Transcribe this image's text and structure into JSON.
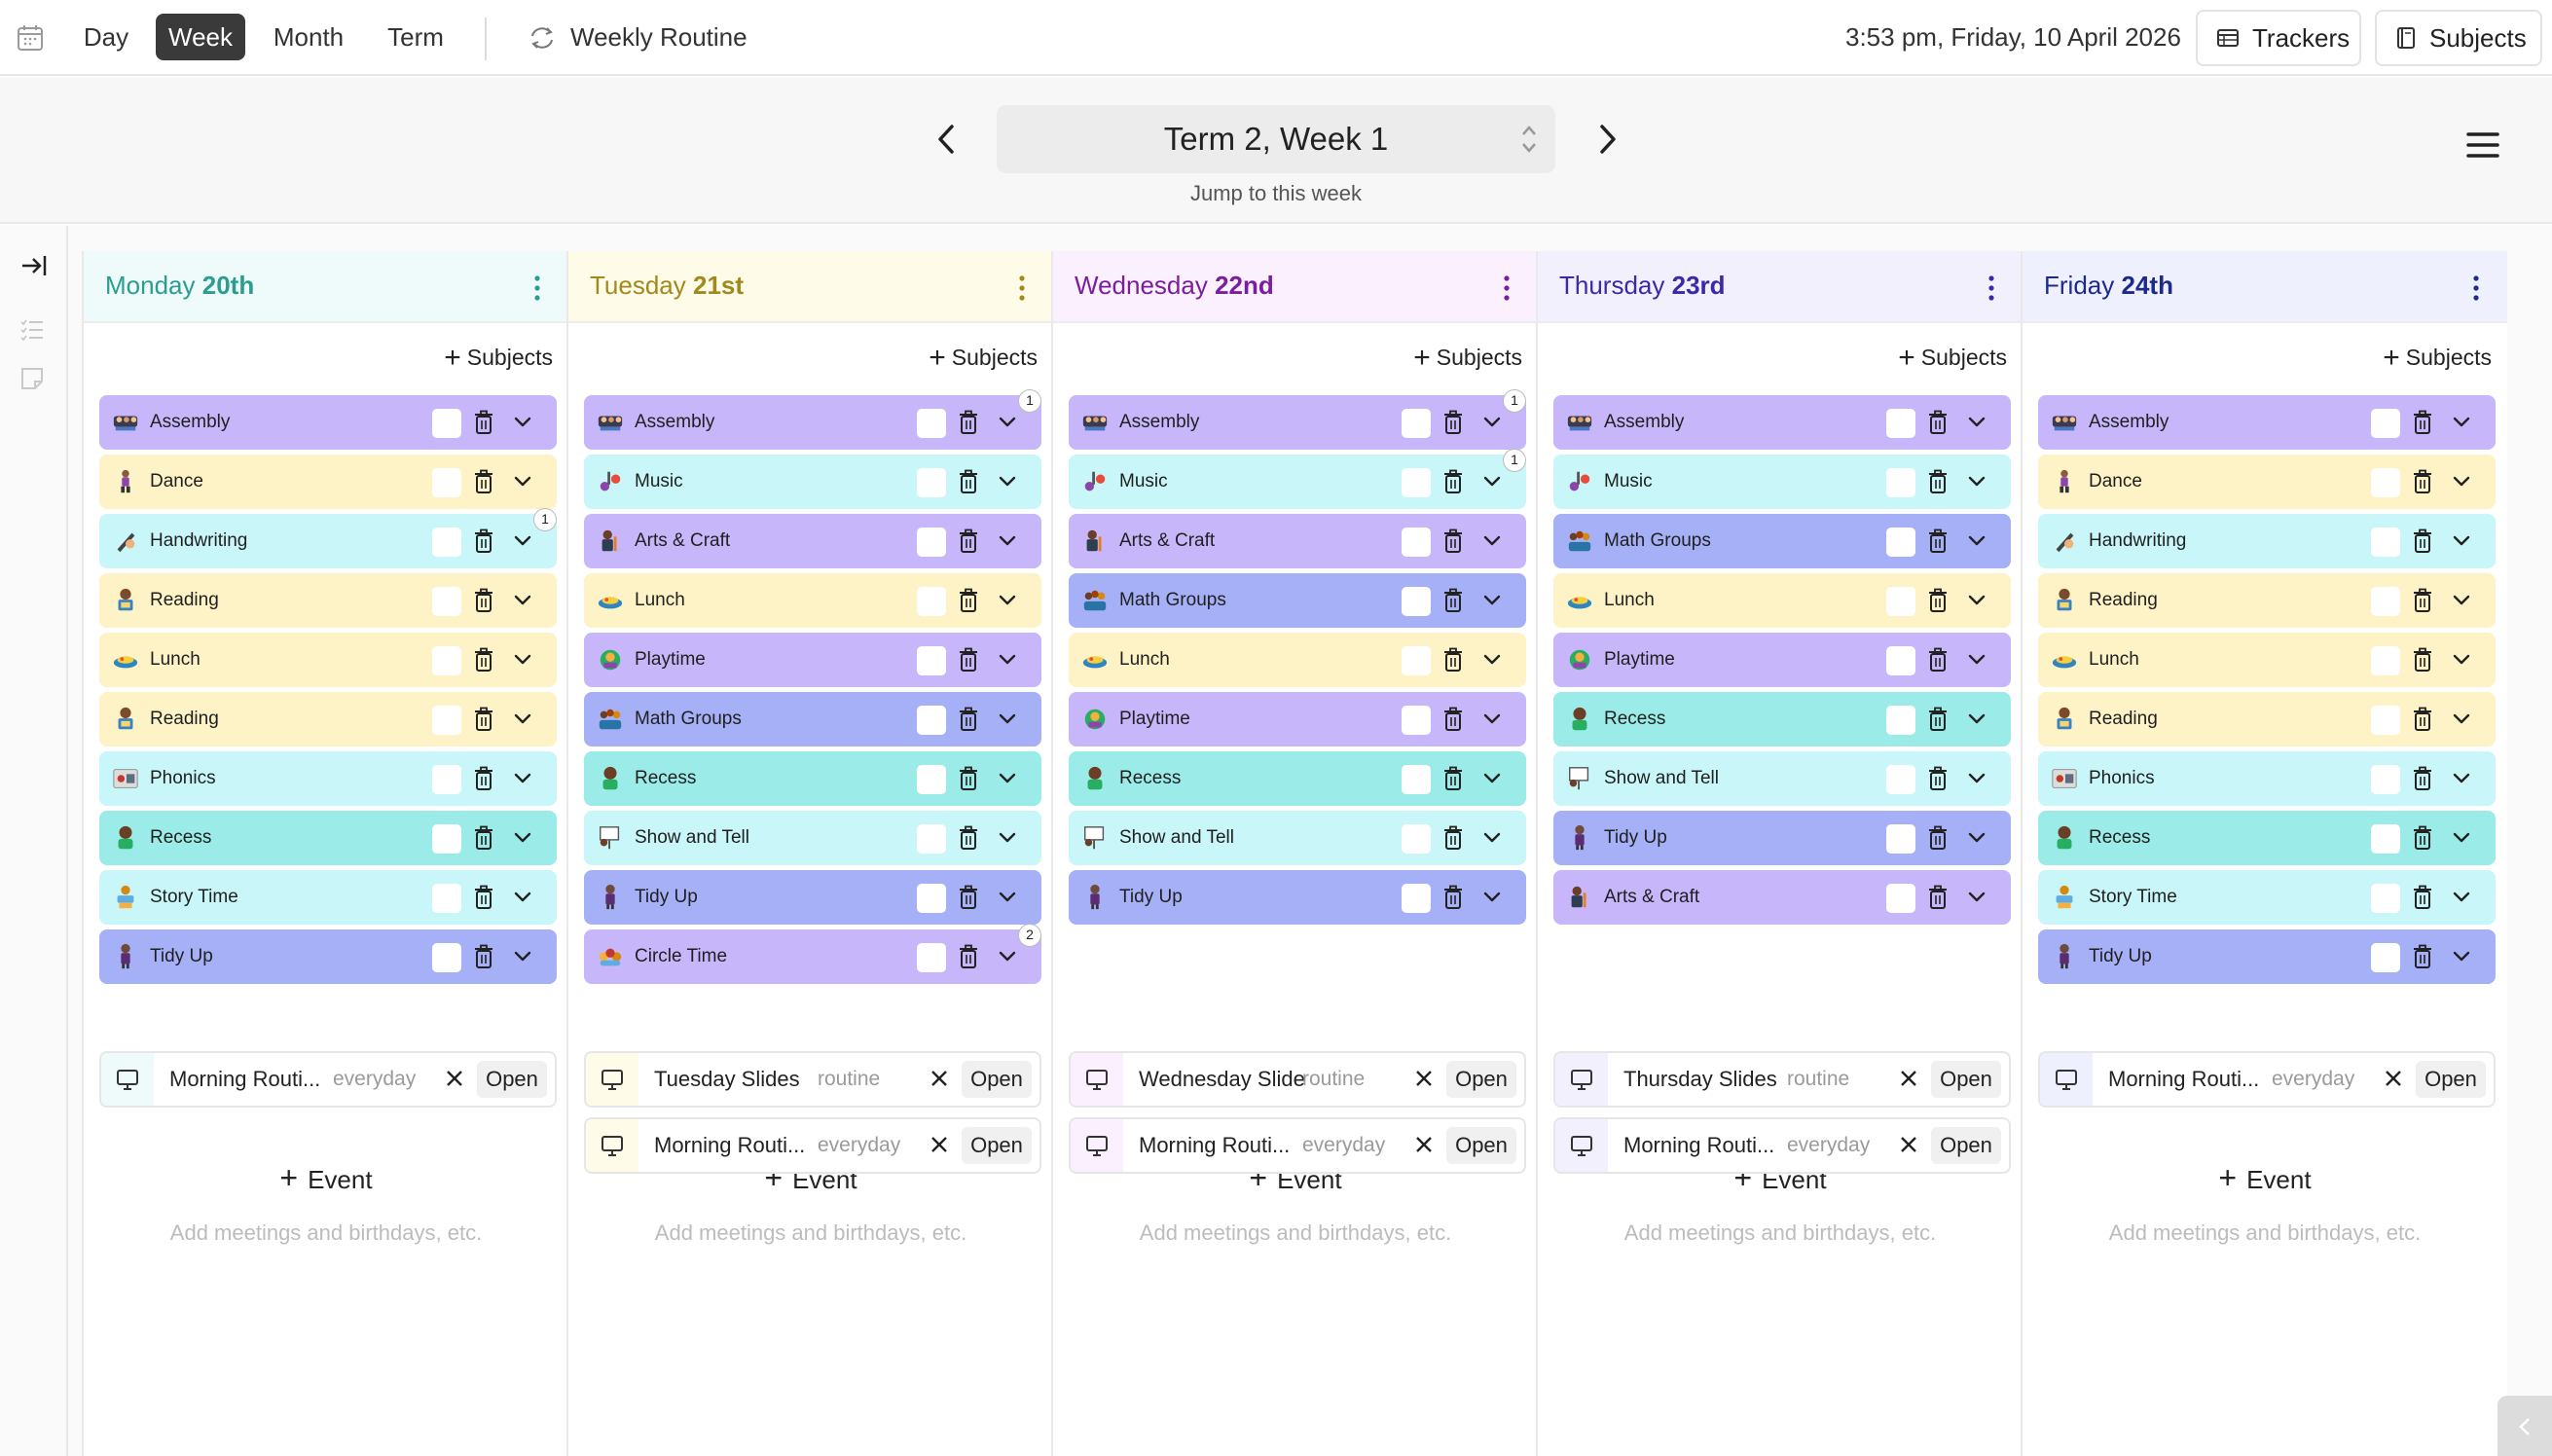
{
  "topbar": {
    "views": [
      "Day",
      "Week",
      "Month",
      "Term"
    ],
    "active_view": "Week",
    "routine_label": "Weekly Routine",
    "datetime": "3:53 pm, Friday, 10 April 2026",
    "trackers_label": "Trackers",
    "subjects_label": "Subjects"
  },
  "weeknav": {
    "title": "Term 2, Week 1",
    "jump_label": "Jump to this week"
  },
  "colors": {
    "purple": "#c8b6fb",
    "yellow": "#fdf3c6",
    "cyan": "#c9f6f8",
    "teal": "#9bece9",
    "indigo": "#a6b0f7",
    "mon": "#2a9d8f",
    "tue": "#a08a1e",
    "wed": "#7b1e9e",
    "thu": "#3a2aa8",
    "fri": "#1e2a8a"
  },
  "days": [
    {
      "weekday": "Monday",
      "date": "20th",
      "add_subjects": "Subjects",
      "subjects": [
        {
          "name": "Assembly",
          "color": "purple",
          "icon": "assembly-icon"
        },
        {
          "name": "Dance",
          "color": "yellow",
          "icon": "dance-icon"
        },
        {
          "name": "Handwriting",
          "color": "cyan",
          "icon": "handwriting-icon",
          "badge": "1"
        },
        {
          "name": "Reading",
          "color": "yellow",
          "icon": "reading-icon"
        },
        {
          "name": "Lunch",
          "color": "yellow",
          "icon": "lunch-icon"
        },
        {
          "name": "Reading",
          "color": "yellow",
          "icon": "reading-icon"
        },
        {
          "name": "Phonics",
          "color": "cyan",
          "icon": "phonics-icon"
        },
        {
          "name": "Recess",
          "color": "teal",
          "icon": "recess-icon"
        },
        {
          "name": "Story Time",
          "color": "cyan",
          "icon": "story-time-icon"
        },
        {
          "name": "Tidy Up",
          "color": "indigo",
          "icon": "tidy-up-icon"
        }
      ],
      "event_label": "Event",
      "event_hint": "Add meetings and birthdays, etc.",
      "slides": [
        {
          "name": "Morning Routi...",
          "tag": "everyday",
          "open": "Open"
        }
      ]
    },
    {
      "weekday": "Tuesday",
      "date": "21st",
      "add_subjects": "Subjects",
      "subjects": [
        {
          "name": "Assembly",
          "color": "purple",
          "icon": "assembly-icon",
          "badge": "1"
        },
        {
          "name": "Music",
          "color": "cyan",
          "icon": "music-icon"
        },
        {
          "name": "Arts & Craft",
          "color": "purple",
          "icon": "arts-craft-icon"
        },
        {
          "name": "Lunch",
          "color": "yellow",
          "icon": "lunch-icon"
        },
        {
          "name": "Playtime",
          "color": "purple",
          "icon": "playtime-icon"
        },
        {
          "name": "Math Groups",
          "color": "indigo",
          "icon": "math-groups-icon"
        },
        {
          "name": "Recess",
          "color": "teal",
          "icon": "recess-icon"
        },
        {
          "name": "Show and Tell",
          "color": "cyan",
          "icon": "show-and-tell-icon"
        },
        {
          "name": "Tidy Up",
          "color": "indigo",
          "icon": "tidy-up-icon"
        },
        {
          "name": "Circle Time",
          "color": "purple",
          "icon": "circle-time-icon",
          "badge": "2"
        }
      ],
      "event_label": "Event",
      "event_hint": "Add meetings and birthdays, etc.",
      "slides": [
        {
          "name": "Tuesday Slides",
          "tag": "routine",
          "open": "Open"
        },
        {
          "name": "Morning Routi...",
          "tag": "everyday",
          "open": "Open"
        }
      ]
    },
    {
      "weekday": "Wednesday",
      "date": "22nd",
      "add_subjects": "Subjects",
      "subjects": [
        {
          "name": "Assembly",
          "color": "purple",
          "icon": "assembly-icon",
          "badge": "1"
        },
        {
          "name": "Music",
          "color": "cyan",
          "icon": "music-icon",
          "badge": "1"
        },
        {
          "name": "Arts & Craft",
          "color": "purple",
          "icon": "arts-craft-icon"
        },
        {
          "name": "Math Groups",
          "color": "indigo",
          "icon": "math-groups-icon"
        },
        {
          "name": "Lunch",
          "color": "yellow",
          "icon": "lunch-icon"
        },
        {
          "name": "Playtime",
          "color": "purple",
          "icon": "playtime-icon"
        },
        {
          "name": "Recess",
          "color": "teal",
          "icon": "recess-icon"
        },
        {
          "name": "Show and Tell",
          "color": "cyan",
          "icon": "show-and-tell-icon"
        },
        {
          "name": "Tidy Up",
          "color": "indigo",
          "icon": "tidy-up-icon"
        }
      ],
      "event_label": "Event",
      "event_hint": "Add meetings and birthdays, etc.",
      "slides": [
        {
          "name": "Wednesday Slides",
          "tag": "routine",
          "open": "Open"
        },
        {
          "name": "Morning Routi...",
          "tag": "everyday",
          "open": "Open"
        }
      ]
    },
    {
      "weekday": "Thursday",
      "date": "23rd",
      "add_subjects": "Subjects",
      "subjects": [
        {
          "name": "Assembly",
          "color": "purple",
          "icon": "assembly-icon"
        },
        {
          "name": "Music",
          "color": "cyan",
          "icon": "music-icon"
        },
        {
          "name": "Math Groups",
          "color": "indigo",
          "icon": "math-groups-icon"
        },
        {
          "name": "Lunch",
          "color": "yellow",
          "icon": "lunch-icon"
        },
        {
          "name": "Playtime",
          "color": "purple",
          "icon": "playtime-icon"
        },
        {
          "name": "Recess",
          "color": "teal",
          "icon": "recess-icon"
        },
        {
          "name": "Show and Tell",
          "color": "cyan",
          "icon": "show-and-tell-icon"
        },
        {
          "name": "Tidy Up",
          "color": "indigo",
          "icon": "tidy-up-icon"
        },
        {
          "name": "Arts & Craft",
          "color": "purple",
          "icon": "arts-craft-icon"
        }
      ],
      "event_label": "Event",
      "event_hint": "Add meetings and birthdays, etc.",
      "slides": [
        {
          "name": "Thursday Slides",
          "tag": "routine",
          "open": "Open"
        },
        {
          "name": "Morning Routi...",
          "tag": "everyday",
          "open": "Open"
        }
      ]
    },
    {
      "weekday": "Friday",
      "date": "24th",
      "add_subjects": "Subjects",
      "subjects": [
        {
          "name": "Assembly",
          "color": "purple",
          "icon": "assembly-icon"
        },
        {
          "name": "Dance",
          "color": "yellow",
          "icon": "dance-icon"
        },
        {
          "name": "Handwriting",
          "color": "cyan",
          "icon": "handwriting-icon"
        },
        {
          "name": "Reading",
          "color": "yellow",
          "icon": "reading-icon"
        },
        {
          "name": "Lunch",
          "color": "yellow",
          "icon": "lunch-icon"
        },
        {
          "name": "Reading",
          "color": "yellow",
          "icon": "reading-icon"
        },
        {
          "name": "Phonics",
          "color": "cyan",
          "icon": "phonics-icon"
        },
        {
          "name": "Recess",
          "color": "teal",
          "icon": "recess-icon"
        },
        {
          "name": "Story Time",
          "color": "cyan",
          "icon": "story-time-icon"
        },
        {
          "name": "Tidy Up",
          "color": "indigo",
          "icon": "tidy-up-icon"
        }
      ],
      "event_label": "Event",
      "event_hint": "Add meetings and birthdays, etc.",
      "slides": [
        {
          "name": "Morning Routi...",
          "tag": "everyday",
          "open": "Open"
        }
      ]
    }
  ]
}
